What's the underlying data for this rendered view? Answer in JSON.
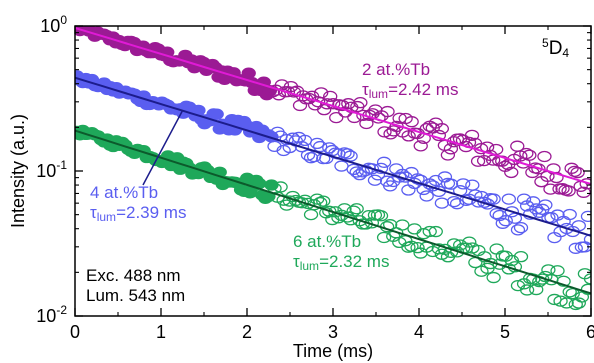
{
  "chart_data": {
    "type": "scatter",
    "xlabel": "Time (ms)",
    "ylabel": "Intensity (a.u.)",
    "xlim": [
      0,
      6
    ],
    "ylim": [
      0.01,
      1.0
    ],
    "yscale": "log",
    "x_ticks": [
      "0",
      "1",
      "2",
      "3",
      "4",
      "5",
      "6"
    ],
    "y_ticks": [
      {
        "base": "10",
        "exp": "0"
      },
      {
        "base": "10",
        "exp": "-1"
      },
      {
        "base": "10",
        "exp": "-2"
      }
    ],
    "grid": false,
    "level_label": {
      "prefix": "5",
      "main": "D",
      "sub": "4"
    },
    "excitation_text": "Exc. 488 nm",
    "luminescence_text": "Lum. 543 nm",
    "series": [
      {
        "label_conc": "2 at.%Tb",
        "tau_symbol": "τ",
        "tau_sub": "lum",
        "tau_value": "=2.42 ms",
        "color": "#9b1a94",
        "fit_color": "#e01ad6",
        "I0": 0.97,
        "tau": 2.42,
        "x_end": 5.95
      },
      {
        "label_conc": "4 at.%Tb",
        "tau_symbol": "τ",
        "tau_sub": "lum",
        "tau_value": "=2.39 ms",
        "color": "#5a5ef0",
        "fit_color": "#1c1c8c",
        "I0": 0.44,
        "tau": 2.39,
        "x_end": 6.0
      },
      {
        "label_conc": "6 at.%Tb",
        "tau_symbol": "τ",
        "tau_sub": "lum",
        "tau_value": "=2.32 ms",
        "color": "#1fa85a",
        "fit_color": "#0c5a2c",
        "I0": 0.19,
        "tau": 2.32,
        "x_end": 6.0
      }
    ]
  }
}
